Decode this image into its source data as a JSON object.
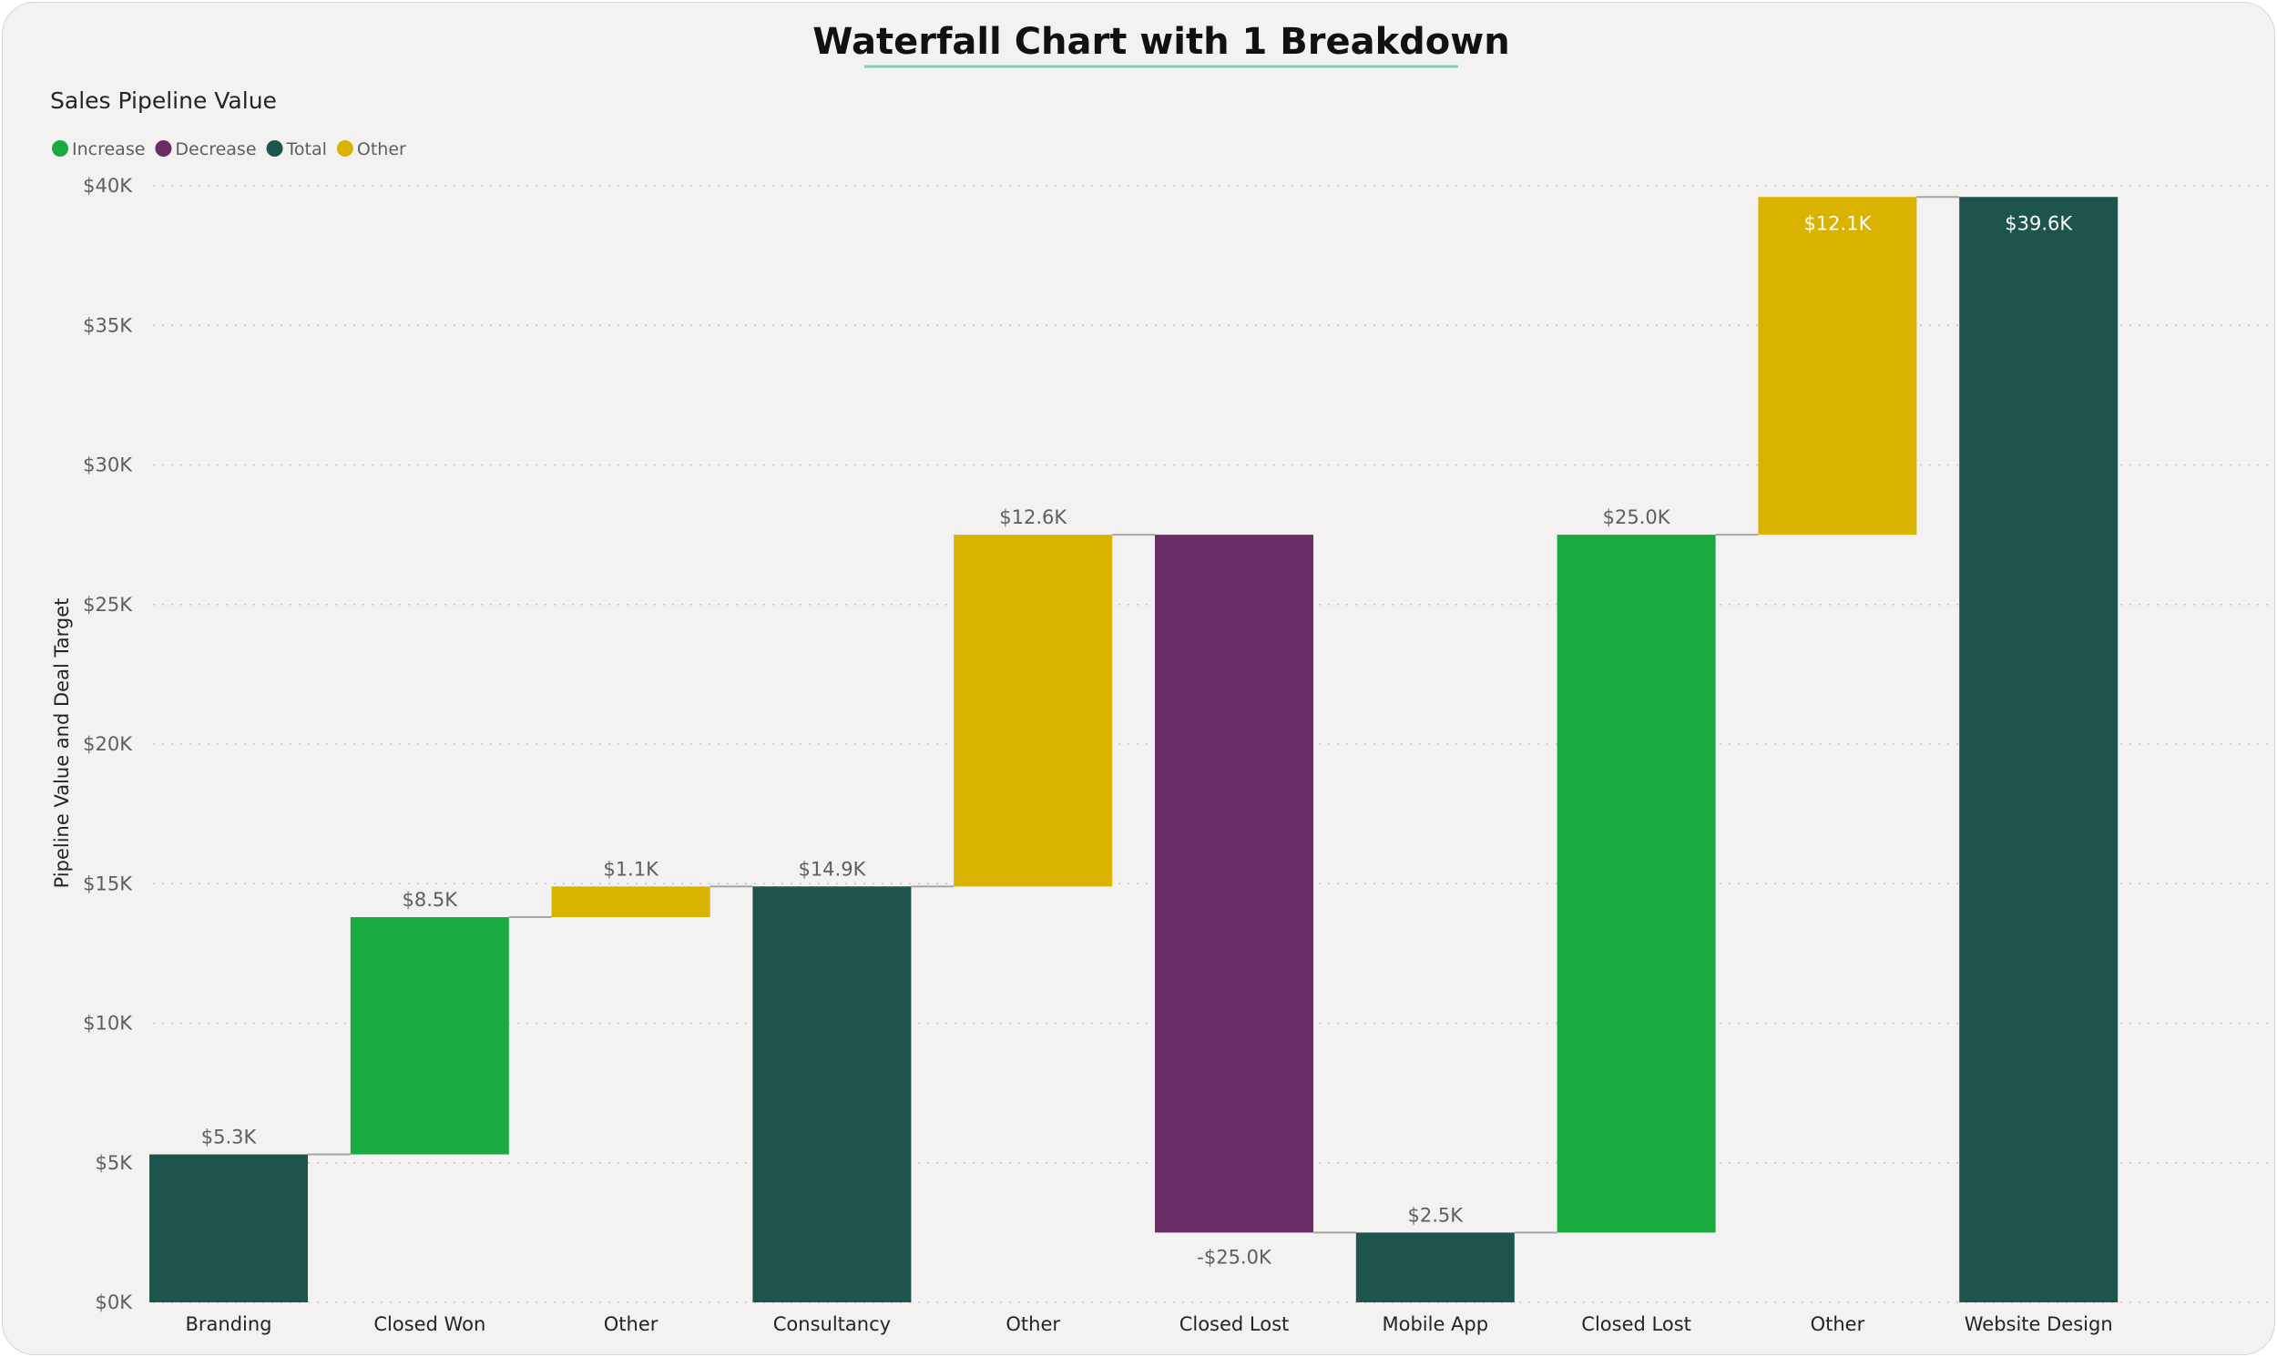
{
  "chart_data": {
    "type": "bar",
    "subtype": "waterfall",
    "title": "Waterfall Chart with 1 Breakdown",
    "subtitle": "Sales Pipeline Value",
    "ylabel": "Pipeline Value and Deal Target",
    "xlabel": "",
    "ylim": [
      0,
      40000
    ],
    "yticks": [
      {
        "value": 0,
        "label": "$0K"
      },
      {
        "value": 5000,
        "label": "$5K"
      },
      {
        "value": 10000,
        "label": "$10K"
      },
      {
        "value": 15000,
        "label": "$15K"
      },
      {
        "value": 20000,
        "label": "$20K"
      },
      {
        "value": 25000,
        "label": "$25K"
      },
      {
        "value": 30000,
        "label": "$30K"
      },
      {
        "value": 35000,
        "label": "$35K"
      },
      {
        "value": 40000,
        "label": "$40K"
      }
    ],
    "grid": true,
    "legend_position": "top-left",
    "legend": [
      {
        "name": "Increase",
        "color": "#1aab40"
      },
      {
        "name": "Decrease",
        "color": "#6b2d66"
      },
      {
        "name": "Total",
        "color": "#1d544c"
      },
      {
        "name": "Other",
        "color": "#d9b300"
      }
    ],
    "bars": [
      {
        "category": "Branding",
        "kind": "Total",
        "start": 0,
        "end": 5300,
        "label": "$5.3K"
      },
      {
        "category": "Closed Won",
        "kind": "Increase",
        "start": 5300,
        "end": 13800,
        "label": "$8.5K"
      },
      {
        "category": "Other",
        "kind": "Other",
        "start": 13800,
        "end": 14900,
        "label": "$1.1K"
      },
      {
        "category": "Consultancy",
        "kind": "Total",
        "start": 0,
        "end": 14900,
        "label": "$14.9K"
      },
      {
        "category": "Other",
        "kind": "Other",
        "start": 14900,
        "end": 27500,
        "label": "$12.6K"
      },
      {
        "category": "Closed Lost",
        "kind": "Decrease",
        "start": 27500,
        "end": 2500,
        "label": "-$25.0K"
      },
      {
        "category": "Mobile App",
        "kind": "Total",
        "start": 0,
        "end": 2500,
        "label": "$2.5K"
      },
      {
        "category": "Closed Lost",
        "kind": "Increase",
        "start": 2500,
        "end": 27500,
        "label": "$25.0K"
      },
      {
        "category": "Other",
        "kind": "Other",
        "start": 27500,
        "end": 39600,
        "label": "$12.1K"
      },
      {
        "category": "Website Design",
        "kind": "Total",
        "start": 0,
        "end": 39600,
        "label": "$39.6K"
      }
    ]
  }
}
